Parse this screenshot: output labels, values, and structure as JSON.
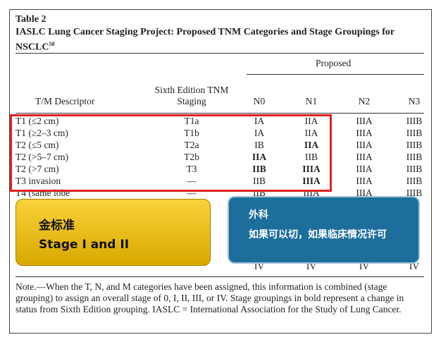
{
  "header": {
    "label": "Table 2",
    "title": "IASLC Lung Cancer Staging Project: Proposed TNM Categories and Stage Groupings for NSCLC",
    "reference": "58"
  },
  "table": {
    "group_header": "Proposed",
    "columns": [
      "T/M Descriptor",
      "Sixth Edition TNM Staging",
      "N0",
      "N1",
      "N2",
      "N3"
    ],
    "rows": [
      [
        "T1 (≤2 cm)",
        "T1a",
        "IA",
        "IIA",
        "IIIA",
        "IIIB"
      ],
      [
        "T1 (≥2–3 cm)",
        "T1b",
        "IA",
        "IIA",
        "IIIA",
        "IIIB"
      ],
      [
        "T2 (≤5 cm)",
        "T2a",
        "IB",
        "IIA",
        "IIIA",
        "IIIB"
      ],
      [
        "T2 (>5–7 cm)",
        "T2b",
        "IIA",
        "IIB",
        "IIIA",
        "IIIB"
      ],
      [
        "T2 (>7 cm)",
        "T3",
        "IIB",
        "IIIA",
        "IIIA",
        "IIIB"
      ],
      [
        "T3 invasion",
        "—",
        "IIB",
        "IIIA",
        "IIIA",
        "IIIB"
      ],
      [
        "T4 (same lobe",
        "—",
        "IIB",
        "IIIA",
        "IIIA",
        "IIIB"
      ]
    ],
    "last_row": [
      "IV",
      "IV",
      "IV",
      "IV"
    ]
  },
  "note": "Note.—When the T, N, and M categories have been assigned, this information is combined (stage grouping) to assign an overall stage of 0, I, II, III, or IV. Stage groupings in bold represent a change in status from Sixth Edition grouping. IASLC = International Association for the Study of Lung Cancer.",
  "callouts": [
    {
      "title": "金标准",
      "text": "Stage I and II"
    },
    {
      "title": "外科",
      "text": "如果可以切，如果临床情况许可"
    }
  ]
}
